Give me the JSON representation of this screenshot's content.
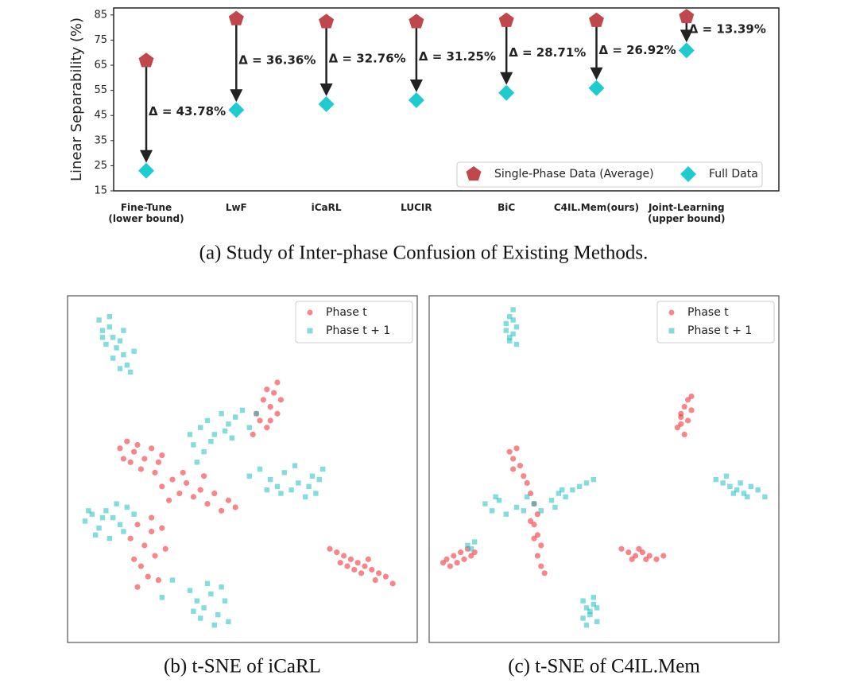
{
  "chart_data": [
    {
      "type": "dumbbell",
      "ylabel": "Linear Separability (%)",
      "caption": "(a) Study of Inter-phase Confusion of Existing Methods.",
      "categories": [
        "Fine-Tune\n(lower bound)",
        "LwF",
        "iCaRL",
        "LUCIR",
        "BiC",
        "C4IL.Mem(ours)",
        "Joint-Learning\n(upper bound)"
      ],
      "series": [
        {
          "name": "Single-Phase Data (Average)",
          "color": "#c0474c",
          "marker": "pentagon",
          "values": [
            66.8,
            83.5,
            82.3,
            82.3,
            82.8,
            82.8,
            84.3
          ]
        },
        {
          "name": "Full Data",
          "color": "#1ecbcf",
          "marker": "diamond",
          "values": [
            23,
            47.2,
            49.5,
            51.1,
            54,
            55.9,
            70.9
          ]
        }
      ],
      "annotations": [
        "Δ = 43.78%",
        "Δ = 36.36%",
        "Δ = 32.76%",
        "Δ = 31.25%",
        "Δ = 28.71%",
        "Δ = 26.92%",
        "Δ = 13.39%"
      ],
      "ylim": [
        15,
        87.8
      ],
      "yticks": [
        15,
        25,
        35,
        45,
        55,
        65,
        75,
        85
      ],
      "legend": "lower right"
    },
    {
      "type": "scatter",
      "caption": "(b) t-SNE of iCaRL",
      "xlim": [
        0,
        100
      ],
      "ylim": [
        0,
        100
      ],
      "legend": "upper right",
      "series": [
        {
          "name": "Phase t",
          "color": "#f0222a",
          "marker": "circle",
          "x": [
            54,
            56,
            57,
            58,
            59,
            60,
            61,
            55,
            57,
            60,
            53,
            58,
            15,
            17,
            19,
            20,
            22,
            24,
            26,
            21,
            18,
            25,
            27,
            16,
            27,
            30,
            32,
            34,
            36,
            38,
            40,
            42,
            44,
            46,
            48,
            33,
            39,
            29,
            18,
            20,
            22,
            24,
            25,
            21,
            23,
            26,
            19,
            28,
            20,
            24,
            27,
            75,
            77,
            79,
            81,
            83,
            85,
            87,
            89,
            91,
            93,
            80,
            84,
            88,
            78,
            86,
            82
          ],
          "y": [
            66,
            70,
            73,
            68,
            72,
            75,
            70,
            64,
            62,
            66,
            60,
            64,
            56,
            58,
            55,
            57,
            53,
            56,
            52,
            50,
            52,
            49,
            54,
            53,
            45,
            47,
            43,
            46,
            42,
            44,
            40,
            43,
            38,
            41,
            39,
            49,
            48,
            41,
            30,
            34,
            28,
            32,
            25,
            22,
            19,
            18,
            24,
            27,
            16,
            36,
            33,
            27,
            26,
            25,
            24,
            23,
            22,
            21,
            20,
            19,
            17,
            22,
            20,
            18,
            23,
            24,
            21
          ]
        },
        {
          "name": "Phase t + 1",
          "color": "#1fbfbf",
          "marker": "square",
          "x": [
            9,
            10,
            12,
            13,
            11,
            14,
            15,
            16,
            13,
            17,
            15,
            18,
            12,
            16,
            19,
            10,
            35,
            38,
            40,
            42,
            44,
            46,
            48,
            50,
            52,
            36,
            39,
            41,
            45,
            47,
            54,
            37,
            52,
            55,
            58,
            60,
            62,
            64,
            66,
            68,
            70,
            72,
            73,
            65,
            61,
            57,
            69,
            71,
            5,
            7,
            9,
            11,
            13,
            15,
            17,
            19,
            8,
            12,
            14,
            6,
            16,
            10,
            35,
            37,
            39,
            41,
            43,
            45,
            42,
            40,
            36,
            44,
            46,
            38,
            30,
            27
          ],
          "y": [
            93,
            90,
            91,
            88,
            86,
            85,
            87,
            83,
            82,
            80,
            79,
            78,
            94,
            90,
            84,
            88,
            60,
            62,
            64,
            60,
            66,
            63,
            65,
            67,
            62,
            57,
            55,
            58,
            61,
            59,
            66,
            52,
            48,
            50,
            47,
            45,
            49,
            44,
            46,
            42,
            48,
            47,
            50,
            51,
            43,
            44,
            45,
            43,
            35,
            37,
            33,
            38,
            36,
            34,
            39,
            37,
            31,
            30,
            40,
            38,
            32,
            36,
            15,
            12,
            10,
            14,
            8,
            12,
            5,
            17,
            9,
            16,
            6,
            7,
            18,
            13
          ]
        }
      ]
    },
    {
      "type": "scatter",
      "caption": "(c) t-SNE of C4IL.Mem",
      "xlim": [
        0,
        100
      ],
      "ylim": [
        0,
        100
      ],
      "legend": "upper right",
      "series": [
        {
          "name": "Phase t",
          "color": "#f0222a",
          "marker": "circle",
          "x": [
            71,
            72,
            73,
            74,
            75,
            72,
            73,
            74,
            75,
            72,
            23,
            24,
            25,
            26,
            24,
            27,
            28,
            29,
            30,
            31,
            30,
            31,
            32,
            31,
            32,
            33,
            30,
            29,
            4,
            5,
            7,
            9,
            11,
            13,
            6,
            8,
            10,
            12,
            55,
            57,
            59,
            61,
            63,
            65,
            67,
            58,
            62,
            60
          ],
          "y": [
            62,
            65,
            68,
            70,
            67,
            63,
            60,
            64,
            71,
            66,
            55,
            53,
            56,
            51,
            50,
            48,
            46,
            43,
            40,
            37,
            34,
            31,
            28,
            25,
            22,
            20,
            30,
            35,
            23,
            24,
            25,
            26,
            27,
            26,
            22,
            23,
            24,
            25,
            27,
            26,
            25,
            26,
            25,
            24,
            25,
            24,
            24,
            27
          ]
        },
        {
          "name": "Phase t + 1",
          "color": "#1fbfbf",
          "marker": "square",
          "x": [
            22,
            23,
            24,
            25,
            23,
            24,
            25,
            22,
            24,
            23,
            16,
            18,
            20,
            22,
            25,
            28,
            30,
            32,
            35,
            37,
            39,
            41,
            43,
            45,
            47,
            36,
            38,
            27,
            19,
            82,
            84,
            86,
            88,
            90,
            92,
            94,
            96,
            85,
            89,
            91,
            87,
            44,
            45,
            46,
            47,
            48,
            45,
            47,
            46,
            44,
            48,
            11,
            12,
            13
          ],
          "y": [
            92,
            94,
            89,
            91,
            87,
            96,
            86,
            90,
            93,
            88,
            40,
            38,
            41,
            37,
            39,
            42,
            40,
            38,
            41,
            43,
            42,
            44,
            45,
            46,
            47,
            39,
            44,
            38,
            42,
            47,
            46,
            45,
            44,
            43,
            45,
            44,
            42,
            48,
            46,
            42,
            43,
            12,
            10,
            8,
            11,
            6,
            5,
            13,
            9,
            7,
            10,
            28,
            27,
            29
          ]
        }
      ]
    }
  ]
}
